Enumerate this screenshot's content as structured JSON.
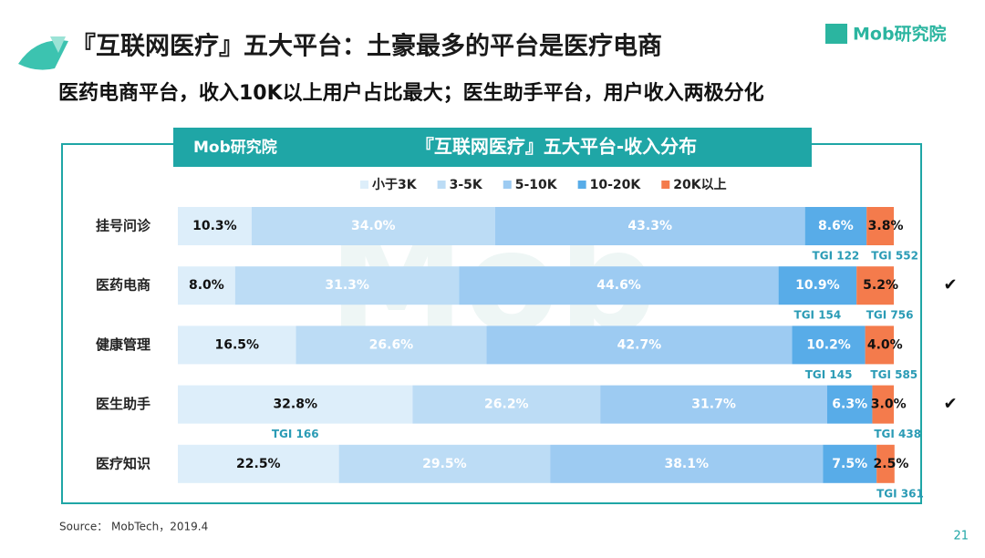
{
  "chart_data": {
    "type": "stacked_bar_horizontal",
    "title": "『互联网医疗』五大平台：土豪最多的平台是医疗电商",
    "subtitle": "医药电商平台，收入10K以上用户占比最大；医生助手平台，用户收入两极分化",
    "chart_title": "『互联网医疗』五大平台-收入分布",
    "logo": "Mob研究院",
    "source": "Source：  MobTech，2019.4",
    "page_number": "21",
    "categories": [
      "挂号问诊",
      "医药电商",
      "健康管理",
      "医生助手",
      "医疗知识"
    ],
    "checks": [
      null,
      "✔",
      null,
      "✔",
      null
    ],
    "xlim": [
      0,
      100
    ],
    "series": [
      {
        "name": "小于3K",
        "color": "#ddeefa",
        "values": [
          10.3,
          8.0,
          16.5,
          32.8,
          22.5
        ],
        "value_labels": [
          "10.3%",
          "8.0%",
          "16.5%",
          "32.8%",
          "22.5%"
        ],
        "tgi_labels": [
          null,
          null,
          null,
          "TGI 166",
          null
        ]
      },
      {
        "name": "3-5K",
        "color": "#bcdcf5",
        "values": [
          34.0,
          31.3,
          26.6,
          26.2,
          29.5
        ],
        "value_labels": [
          "34.0%",
          "31.3%",
          "26.6%",
          "26.2%",
          "29.5%"
        ],
        "tgi_labels": [
          null,
          null,
          null,
          null,
          null
        ]
      },
      {
        "name": "5-10K",
        "color": "#9dcbf2",
        "values": [
          43.3,
          44.6,
          42.7,
          31.7,
          38.1
        ],
        "value_labels": [
          "43.3%",
          "44.6%",
          "42.7%",
          "31.7%",
          "38.1%"
        ],
        "tgi_labels": [
          null,
          null,
          null,
          null,
          null
        ]
      },
      {
        "name": "10-20K",
        "color": "#58ace8",
        "values": [
          8.6,
          10.9,
          10.2,
          6.3,
          7.5
        ],
        "value_labels": [
          "8.6%",
          "10.9%",
          "10.2%",
          "6.3%",
          "7.5%"
        ],
        "tgi_labels": [
          "TGI 122",
          "TGI 154",
          "TGI 145",
          null,
          null
        ]
      },
      {
        "name": "20K以上",
        "color": "#f47b4c",
        "values": [
          3.8,
          5.2,
          4.0,
          3.0,
          2.5
        ],
        "value_labels": [
          "3.8%",
          "5.2%",
          "4.0%",
          "3.0%",
          "2.5%"
        ],
        "tgi_labels": [
          "TGI 552",
          "TGI 756",
          "TGI 585",
          "TGI 438",
          "TGI 361"
        ]
      }
    ]
  }
}
